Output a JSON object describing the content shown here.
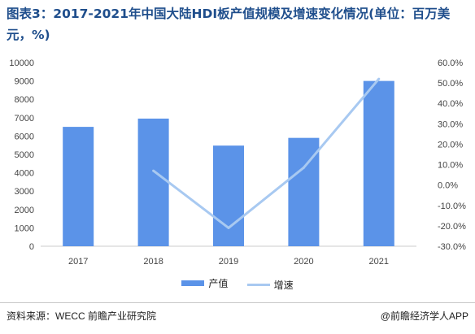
{
  "title": "图表3：2017-2021年中国大陆HDI板产值规模及增速变化情况(单位：百万美元，%)",
  "legend": {
    "bar_label": "产值",
    "line_label": "增速"
  },
  "footer": {
    "source": "资料来源：WECC 前瞻产业研究院",
    "brand": "@前瞻经济学人APP"
  },
  "colors": {
    "bar": "#5b93e8",
    "line": "#a8c9f1",
    "title": "#1f4e8c"
  },
  "chart_data": {
    "type": "bar",
    "categories": [
      "2017",
      "2018",
      "2019",
      "2020",
      "2021"
    ],
    "series": [
      {
        "name": "产值",
        "type": "bar",
        "axis": "left",
        "values": [
          6500,
          6950,
          5480,
          5900,
          9000
        ]
      },
      {
        "name": "增速",
        "type": "line",
        "axis": "right",
        "values": [
          null,
          7.0,
          -21.0,
          8.5,
          52.0
        ]
      }
    ],
    "ylim_left": [
      0,
      10000
    ],
    "yticks_left": [
      "10000",
      "9000",
      "8000",
      "7000",
      "6000",
      "5000",
      "4000",
      "3000",
      "2000",
      "1000",
      "0"
    ],
    "ylim_right": [
      -30,
      60
    ],
    "yticks_right": [
      "60.0%",
      "50.0%",
      "40.0%",
      "30.0%",
      "20.0%",
      "10.0%",
      "0.0%",
      "-10.0%",
      "-20.0%",
      "-30.0%"
    ],
    "legend_position": "bottom",
    "grid": false
  }
}
